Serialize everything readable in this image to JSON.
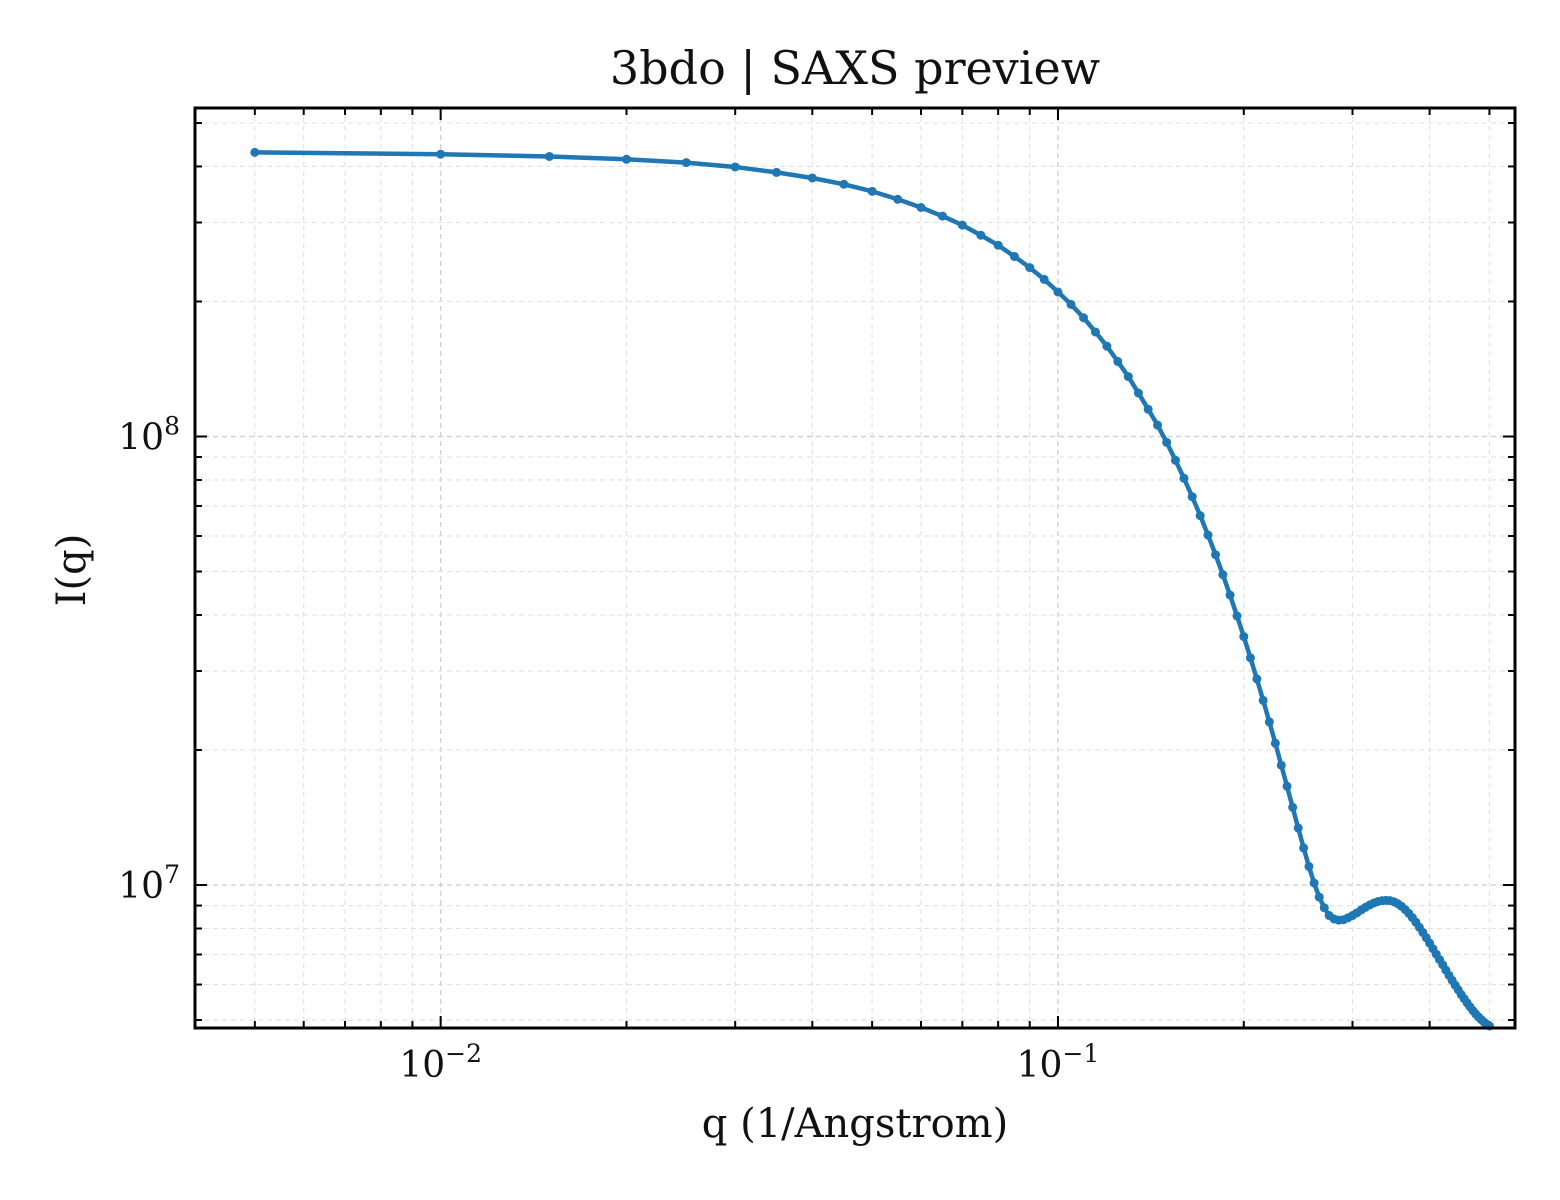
{
  "chart_data": {
    "type": "line",
    "title": "3bdo | SAXS preview",
    "xlabel": "q (1/Angstrom)",
    "ylabel": "I(q)",
    "xscale": "log",
    "yscale": "log",
    "xlim": [
      0.004,
      0.55
    ],
    "ylim": [
      4800000,
      540000000
    ],
    "grid": true,
    "legend": "none",
    "line_color": "#1f77b4",
    "x_ticks": [
      {
        "base": "10",
        "exp": "−2",
        "value": 0.01
      },
      {
        "base": "10",
        "exp": "−1",
        "value": 0.1
      }
    ],
    "y_ticks": [
      {
        "base": "10",
        "exp": "7",
        "value": 10000000
      },
      {
        "base": "10",
        "exp": "8",
        "value": 100000000
      }
    ],
    "series": [
      {
        "x": [
          0.005,
          0.01,
          0.015,
          0.02,
          0.025,
          0.03,
          0.035,
          0.04,
          0.045,
          0.05,
          0.055,
          0.06,
          0.065,
          0.07,
          0.075,
          0.08,
          0.085,
          0.09,
          0.095,
          0.1,
          0.105,
          0.11,
          0.115,
          0.12,
          0.125,
          0.13,
          0.135,
          0.14,
          0.145,
          0.15,
          0.155,
          0.16,
          0.165,
          0.17,
          0.175,
          0.18,
          0.185,
          0.19,
          0.195,
          0.2,
          0.205,
          0.21,
          0.215,
          0.22,
          0.225,
          0.23,
          0.235,
          0.24,
          0.245,
          0.25,
          0.255,
          0.26,
          0.265,
          0.27,
          0.275,
          0.28,
          0.285,
          0.29,
          0.295,
          0.3,
          0.305,
          0.31,
          0.315,
          0.32,
          0.325,
          0.33,
          0.335,
          0.34,
          0.345,
          0.35,
          0.355,
          0.36,
          0.365,
          0.37,
          0.375,
          0.38,
          0.385,
          0.39,
          0.395,
          0.4,
          0.405,
          0.41,
          0.415,
          0.42,
          0.425,
          0.43,
          0.435,
          0.44,
          0.445,
          0.45,
          0.455,
          0.46,
          0.465,
          0.47,
          0.475,
          0.48,
          0.485,
          0.49,
          0.495,
          0.5
        ],
        "y": [
          430000000,
          426000000,
          421000000,
          415000000,
          408000000,
          399000000,
          388000000,
          377000000,
          365000000,
          352000000,
          338000000,
          324000000,
          310000000,
          296000000,
          281000000,
          267000000,
          252000000,
          238000000,
          224000000,
          210000000,
          197000000,
          184000000,
          171000000,
          159000000,
          147000000,
          136000000,
          125000000,
          115000000,
          106000000,
          97000000,
          88500000,
          80700000,
          73400000,
          66600000,
          60300000,
          54500000,
          49200000,
          44300000,
          39800000,
          35800000,
          32100000,
          28800000,
          25800000,
          23100000,
          20700000,
          18500000,
          16600000,
          14900000,
          13400000,
          12100000,
          11000000,
          10100000,
          9400000,
          8900000,
          8550000,
          8400000,
          8350000,
          8370000,
          8450000,
          8550000,
          8670000,
          8800000,
          8920000,
          9030000,
          9120000,
          9190000,
          9230000,
          9240000,
          9230000,
          9180000,
          9090000,
          8970000,
          8820000,
          8650000,
          8460000,
          8260000,
          8050000,
          7840000,
          7630000,
          7420000,
          7210000,
          7010000,
          6820000,
          6640000,
          6460000,
          6290000,
          6130000,
          5980000,
          5840000,
          5700000,
          5580000,
          5460000,
          5350000,
          5250000,
          5160000,
          5080000,
          5010000,
          4950000,
          4890000,
          4850000
        ]
      }
    ]
  }
}
